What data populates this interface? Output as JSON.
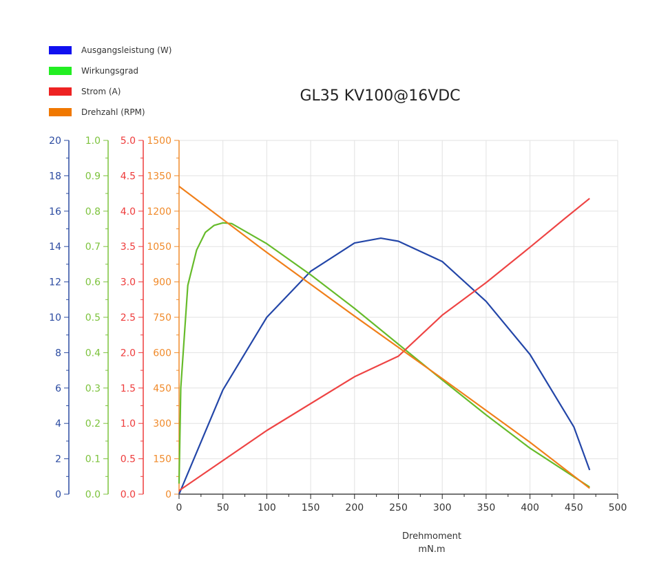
{
  "chart_data": {
    "type": "line",
    "title": "GL35 KV100@16VDC",
    "xlabel": "Drehmoment",
    "xunit": "mN.m",
    "xlim": [
      0,
      500
    ],
    "xticks": [
      0,
      50,
      100,
      150,
      200,
      250,
      300,
      350,
      400,
      450,
      500
    ],
    "grid": true,
    "legend_position": "top-left",
    "axes": [
      {
        "id": "power",
        "color": "#2a4aa0",
        "ylim": [
          0,
          20
        ],
        "ticks": [
          "0",
          "2",
          "4",
          "6",
          "8",
          "10",
          "12",
          "14",
          "16",
          "18",
          "20"
        ]
      },
      {
        "id": "eff",
        "color": "#7cc23c",
        "ylim": [
          0,
          1
        ],
        "ticks": [
          "0.0",
          "0.1",
          "0.2",
          "0.3",
          "0.4",
          "0.5",
          "0.6",
          "0.7",
          "0.8",
          "0.9",
          "1.0"
        ]
      },
      {
        "id": "current",
        "color": "#ee3b3b",
        "ylim": [
          0,
          5
        ],
        "ticks": [
          "0.0",
          "0.5",
          "1.0",
          "1.5",
          "2.0",
          "2.5",
          "3.0",
          "3.5",
          "4.0",
          "4.5",
          "5.0"
        ]
      },
      {
        "id": "speed",
        "color": "#f08a2a",
        "ylim": [
          0,
          1500
        ],
        "ticks": [
          "0",
          "150",
          "300",
          "450",
          "600",
          "750",
          "900",
          "1050",
          "1200",
          "1350",
          "1500"
        ]
      }
    ],
    "series": [
      {
        "name": "Ausgangsleistung (W)",
        "axis": "power",
        "color": "#2346a8",
        "swatch": "#1010f0",
        "x": [
          0,
          50,
          100,
          150,
          200,
          230,
          250,
          300,
          350,
          400,
          450,
          468
        ],
        "y": [
          0,
          5.9,
          10.0,
          12.6,
          14.2,
          14.47,
          14.3,
          13.15,
          10.9,
          7.9,
          3.8,
          1.36
        ]
      },
      {
        "name": "Wirkungsgrad",
        "axis": "eff",
        "color": "#66bb2a",
        "swatch": "#22ee22",
        "x": [
          0,
          2,
          10,
          20,
          30,
          40,
          50,
          60,
          100,
          150,
          200,
          250,
          300,
          350,
          400,
          468
        ],
        "y": [
          0.03,
          0.3,
          0.59,
          0.69,
          0.74,
          0.76,
          0.767,
          0.765,
          0.708,
          0.62,
          0.525,
          0.424,
          0.323,
          0.224,
          0.13,
          0.02
        ]
      },
      {
        "name": "Strom (A)",
        "axis": "current",
        "color": "#ee4444",
        "swatch": "#ee2222",
        "x": [
          0,
          100,
          200,
          250,
          300,
          350,
          400,
          440,
          468
        ],
        "y": [
          0.05,
          0.9,
          1.66,
          1.95,
          2.53,
          2.99,
          3.49,
          3.9,
          4.18
        ]
      },
      {
        "name": "Drehzahl (RPM)",
        "axis": "speed",
        "color": "#f07f1a",
        "swatch": "#f07800",
        "x": [
          0,
          100,
          200,
          300,
          400,
          468
        ],
        "y": [
          1305,
          1025,
          755,
          490,
          220,
          25
        ]
      }
    ]
  }
}
